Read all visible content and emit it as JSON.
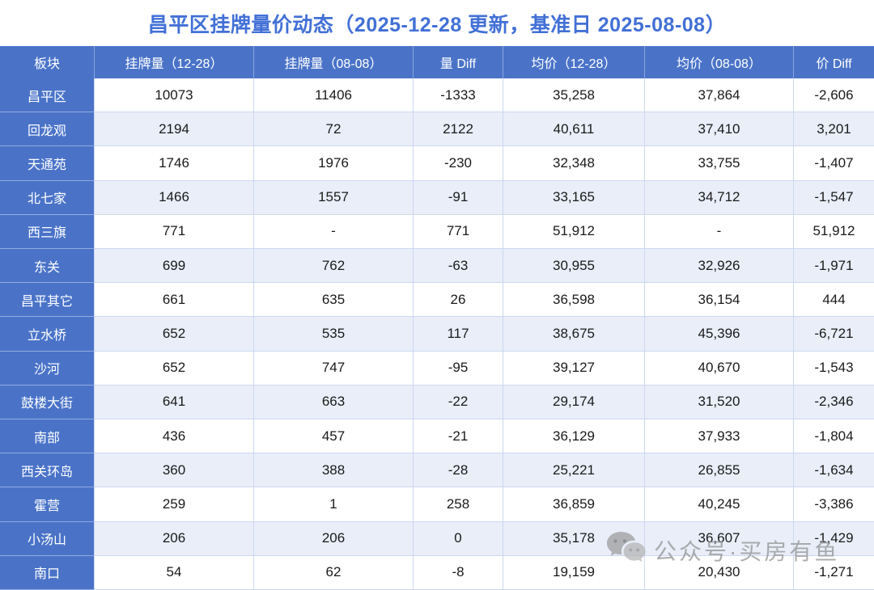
{
  "title": "昌平区挂牌量价动态（2025-12-28 更新，基准日 2025-08-08）",
  "table": {
    "columns": [
      "板块",
      "挂牌量（12-28）",
      "挂牌量（08-08）",
      "量 Diff",
      "均价（12-28）",
      "均价（08-08）",
      "价 Diff"
    ],
    "rows": [
      [
        "昌平区",
        "10073",
        "11406",
        "-1333",
        "35,258",
        "37,864",
        "-2,606"
      ],
      [
        "回龙观",
        "2194",
        "72",
        "2122",
        "40,611",
        "37,410",
        "3,201"
      ],
      [
        "天通苑",
        "1746",
        "1976",
        "-230",
        "32,348",
        "33,755",
        "-1,407"
      ],
      [
        "北七家",
        "1466",
        "1557",
        "-91",
        "33,165",
        "34,712",
        "-1,547"
      ],
      [
        "西三旗",
        "771",
        "-",
        "771",
        "51,912",
        "-",
        "51,912"
      ],
      [
        "东关",
        "699",
        "762",
        "-63",
        "30,955",
        "32,926",
        "-1,971"
      ],
      [
        "昌平其它",
        "661",
        "635",
        "26",
        "36,598",
        "36,154",
        "444"
      ],
      [
        "立水桥",
        "652",
        "535",
        "117",
        "38,675",
        "45,396",
        "-6,721"
      ],
      [
        "沙河",
        "652",
        "747",
        "-95",
        "39,127",
        "40,670",
        "-1,543"
      ],
      [
        "鼓楼大街",
        "641",
        "663",
        "-22",
        "29,174",
        "31,520",
        "-2,346"
      ],
      [
        "南部",
        "436",
        "457",
        "-21",
        "36,129",
        "37,933",
        "-1,804"
      ],
      [
        "西关环岛",
        "360",
        "388",
        "-28",
        "25,221",
        "26,855",
        "-1,634"
      ],
      [
        "霍营",
        "259",
        "1",
        "258",
        "36,859",
        "40,245",
        "-3,386"
      ],
      [
        "小汤山",
        "206",
        "206",
        "0",
        "35,178",
        "36,607",
        "-1,429"
      ],
      [
        "南口",
        "54",
        "62",
        "-8",
        "19,159",
        "20,430",
        "-1,271"
      ]
    ]
  },
  "watermark": {
    "label": "公众号·买房有鱼",
    "icon": "wechat-icon"
  },
  "colors": {
    "header_bg": "#4a73c8",
    "title_text": "#4270d6",
    "row_alt_bg": "#e9eef9",
    "gridline": "#ccd8ef",
    "watermark_gray": "#8f8f8f"
  }
}
